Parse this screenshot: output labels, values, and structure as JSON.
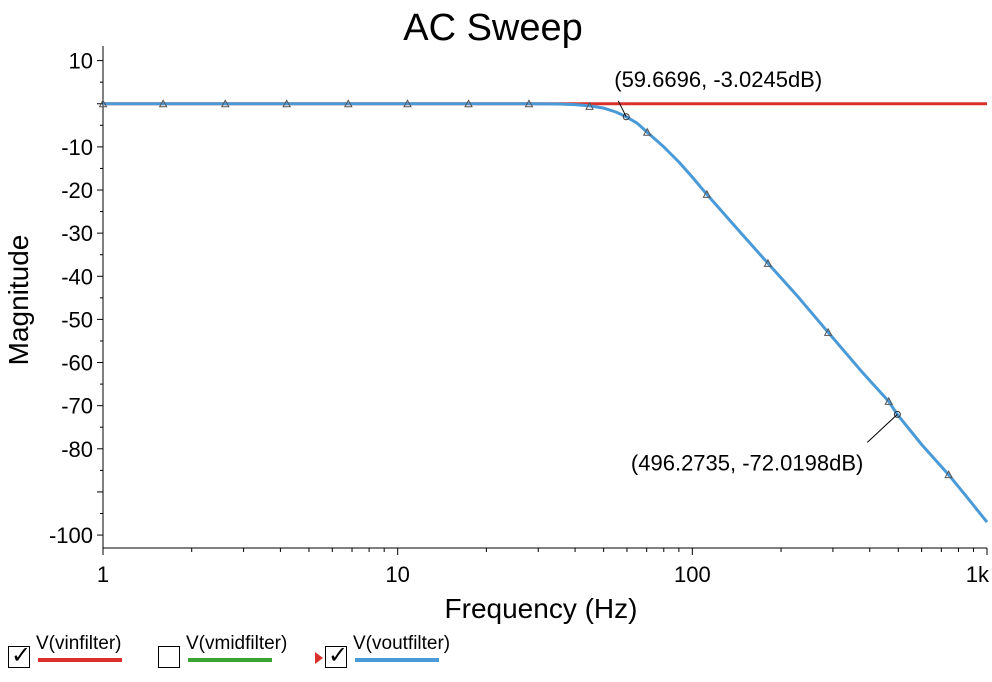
{
  "chart_data": {
    "type": "line",
    "title": "AC Sweep",
    "xlabel": "Frequency (Hz)",
    "ylabel": "Magnitude",
    "x_scale": "log",
    "xlim": [
      1,
      1000
    ],
    "ylim": [
      -103,
      12
    ],
    "x_ticks": [
      1,
      10,
      100,
      1000
    ],
    "x_tick_labels": [
      "1",
      "10",
      "100",
      "1k"
    ],
    "y_ticks": [
      10,
      -10,
      -20,
      -30,
      -40,
      -50,
      -60,
      -70,
      -80,
      -100
    ],
    "y_tick_labels": [
      "10",
      "-10",
      "-20",
      "-30",
      "-40",
      "-50",
      "-60",
      "-70",
      "-80",
      "-100"
    ],
    "grid": false,
    "series": [
      {
        "name": "V(vinfilter)",
        "color": "#d9302c",
        "visible": true,
        "x": [
          1,
          1000
        ],
        "y": [
          0,
          0
        ]
      },
      {
        "name": "V(vmidfilter)",
        "color": "#3aa535",
        "visible": false,
        "x": [],
        "y": []
      },
      {
        "name": "V(voutfilter)",
        "color": "#4a9ad8",
        "visible": true,
        "x": [
          1,
          1.6,
          2.6,
          4.2,
          6.8,
          10.8,
          17.4,
          27.9,
          35,
          40,
          45,
          50,
          55,
          59.67,
          65,
          70.3,
          80,
          90,
          100,
          112,
          140,
          180.5,
          230,
          289,
          380,
          464,
          496.27,
          600,
          741,
          850,
          1000
        ],
        "y": [
          0,
          0,
          0,
          0,
          0,
          0,
          0,
          0,
          -0.05,
          -0.2,
          -0.5,
          -1.0,
          -1.9,
          -3.02,
          -4.5,
          -6.6,
          -10.0,
          -13.5,
          -17.0,
          -21.0,
          -28.5,
          -37.0,
          -45.0,
          -53.0,
          -62.5,
          -69.0,
          -72.02,
          -79.0,
          -86.0,
          -91.0,
          -97.0
        ]
      }
    ],
    "markers": {
      "V(vinfilter)": [],
      "V(voutfilter)": [
        [
          1,
          0
        ],
        [
          1.6,
          0
        ],
        [
          2.6,
          0
        ],
        [
          4.2,
          0
        ],
        [
          6.8,
          0
        ],
        [
          10.8,
          0
        ],
        [
          17.4,
          0
        ],
        [
          27.9,
          0
        ],
        [
          44.8,
          -0.6
        ],
        [
          70.3,
          -6.6
        ],
        [
          112,
          -21.0
        ],
        [
          180.5,
          -37.0
        ],
        [
          289,
          -53.0
        ],
        [
          464,
          -69.0
        ],
        [
          741,
          -86.0
        ]
      ]
    },
    "annotations": [
      {
        "text": "(59.6696, -3.0245dB)",
        "x": 59.6696,
        "y": -3.0245
      },
      {
        "text": "(496.2735, -72.0198dB)",
        "x": 496.2735,
        "y": -72.0198
      }
    ],
    "legend": {
      "placement": "bottom",
      "items": [
        {
          "label": "V(vinfilter)",
          "color": "#d9302c",
          "checked": true,
          "selected": false
        },
        {
          "label": "V(vmidfilter)",
          "color": "#3aa535",
          "checked": false,
          "selected": false
        },
        {
          "label": "V(voutfilter)",
          "color": "#4a9ad8",
          "checked": true,
          "selected": true
        }
      ]
    }
  }
}
